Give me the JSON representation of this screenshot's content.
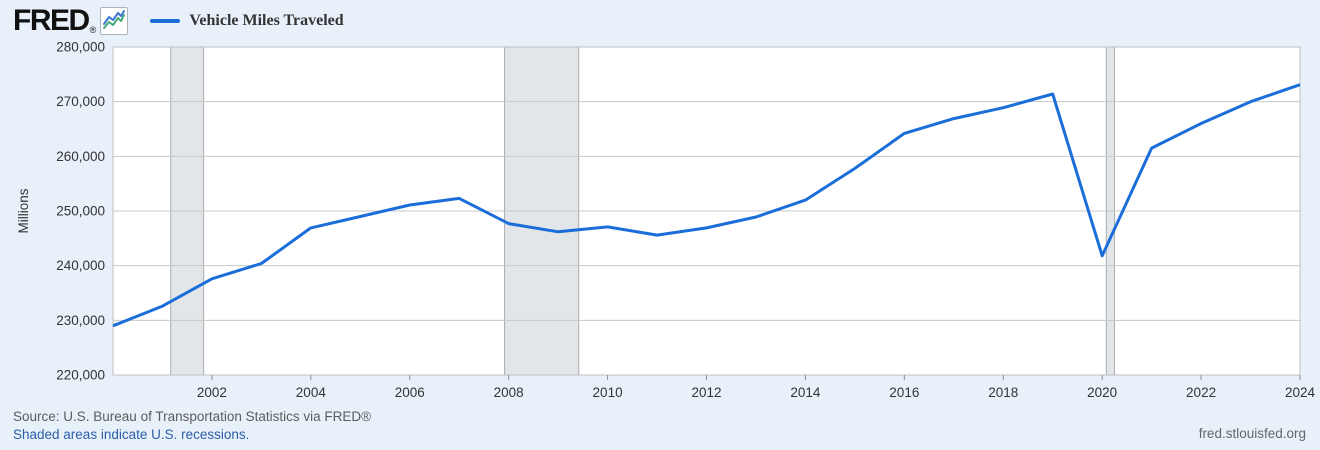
{
  "header": {
    "logo": "FRED",
    "registered": "®",
    "legend": {
      "swatch_color": "#1b6ed9",
      "label": "Vehicle Miles Traveled"
    }
  },
  "chart_data": {
    "type": "line",
    "title": "Vehicle Miles Traveled",
    "series_name": "Vehicle Miles Traveled",
    "ylabel": "Millions",
    "x": [
      2000,
      2001,
      2002,
      2003,
      2004,
      2005,
      2006,
      2007,
      2008,
      2009,
      2010,
      2011,
      2012,
      2013,
      2014,
      2015,
      2016,
      2017,
      2018,
      2019,
      2020,
      2021,
      2022,
      2023,
      2024
    ],
    "values": [
      229000,
      232600,
      237600,
      240400,
      246900,
      249000,
      251100,
      252300,
      247700,
      246200,
      247100,
      245600,
      246900,
      248900,
      252000,
      257800,
      264200,
      266900,
      268900,
      271400,
      241800,
      261500,
      266000,
      270000,
      273100
    ],
    "xlim": [
      2000,
      2024
    ],
    "ylim": [
      220000,
      280000
    ],
    "yticks": [
      220000,
      230000,
      240000,
      250000,
      260000,
      270000,
      280000
    ],
    "ytick_labels": [
      "220,000",
      "230,000",
      "240,000",
      "250,000",
      "260,000",
      "270,000",
      "280,000"
    ],
    "xticks": [
      2002,
      2004,
      2006,
      2008,
      2010,
      2012,
      2014,
      2016,
      2018,
      2020,
      2022,
      2024
    ],
    "grid": "horizontal-only",
    "legend_position": "top-left",
    "line_color": "#1b6ed9",
    "recession_bands": [
      {
        "start": 2001.167,
        "end": 2001.833
      },
      {
        "start": 2007.917,
        "end": 2009.417
      },
      {
        "start": 2020.083,
        "end": 2020.25
      }
    ],
    "band_fill": "#e3e6e9",
    "band_edge": "#a9adb2",
    "note": "Shaded areas indicate U.S. recessions."
  },
  "footer": {
    "source": "Source: U.S. Bureau of Transportation Statistics via FRED®",
    "note": "Shaded areas indicate U.S. recessions.",
    "site": "fred.stlouisfed.org"
  }
}
